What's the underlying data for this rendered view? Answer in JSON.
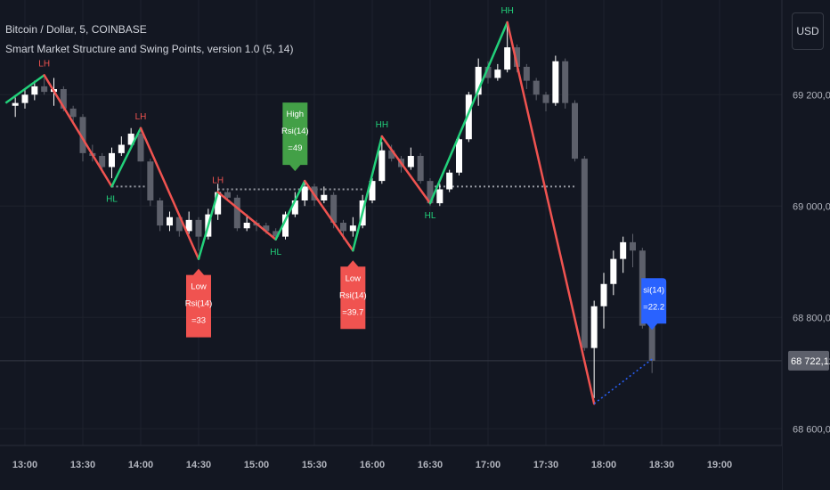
{
  "header": {
    "symbol_line": "Bitcoin / Dollar, 5, COINBASE",
    "indicator_line": "Smart Market Structure and Swing Points, version 1.0 (5, 14)"
  },
  "toolbar": {
    "currency_label": "USD"
  },
  "colors": {
    "background": "#131722",
    "grid": "#1e222d",
    "up_candle": "#ffffff",
    "down_candle": "#5d606b",
    "bull_line": "#22d07a",
    "bear_line": "#f05350",
    "high_box": "#43a047",
    "low_box": "#f05350",
    "current_box": "#2962ff",
    "axis_text": "#b2b5be"
  },
  "chart_data": {
    "type": "candlestick",
    "symbol": "Bitcoin / Dollar",
    "interval": "5",
    "exchange": "COINBASE",
    "x_tick_labels": [
      "13:00",
      "13:30",
      "14:00",
      "14:30",
      "15:00",
      "15:30",
      "16:00",
      "16:30",
      "17:00",
      "17:30",
      "18:00",
      "18:30",
      "19:00"
    ],
    "y_tick_labels": [
      "69 200,00",
      "69 000,00",
      "68 800,00",
      "68 600,00"
    ],
    "y_ticks": [
      69200,
      69000,
      68800,
      68600
    ],
    "ylim": [
      68570,
      69370
    ],
    "last_price": 68722.12,
    "last_price_label": "68 722,12",
    "candles": [
      {
        "time": "12:55",
        "open": 69180,
        "high": 69195,
        "low": 69160,
        "close": 69185
      },
      {
        "time": "13:00",
        "open": 69185,
        "high": 69210,
        "low": 69175,
        "close": 69200
      },
      {
        "time": "13:05",
        "open": 69200,
        "high": 69225,
        "low": 69190,
        "close": 69215
      },
      {
        "time": "13:10",
        "open": 69215,
        "high": 69230,
        "low": 69200,
        "close": 69205
      },
      {
        "time": "13:15",
        "open": 69205,
        "high": 69230,
        "low": 69180,
        "close": 69210
      },
      {
        "time": "13:20",
        "open": 69210,
        "high": 69215,
        "low": 69170,
        "close": 69175
      },
      {
        "time": "13:25",
        "open": 69175,
        "high": 69180,
        "low": 69150,
        "close": 69160
      },
      {
        "time": "13:30",
        "open": 69160,
        "high": 69165,
        "low": 69080,
        "close": 69095
      },
      {
        "time": "13:35",
        "open": 69095,
        "high": 69110,
        "low": 69080,
        "close": 69090
      },
      {
        "time": "13:40",
        "open": 69090,
        "high": 69095,
        "low": 69060,
        "close": 69070
      },
      {
        "time": "13:45",
        "open": 69070,
        "high": 69105,
        "low": 69050,
        "close": 69095
      },
      {
        "time": "13:50",
        "open": 69095,
        "high": 69125,
        "low": 69090,
        "close": 69110
      },
      {
        "time": "13:55",
        "open": 69110,
        "high": 69140,
        "low": 69105,
        "close": 69130
      },
      {
        "time": "14:00",
        "open": 69130,
        "high": 69135,
        "low": 69080,
        "close": 69080
      },
      {
        "time": "14:05",
        "open": 69080,
        "high": 69085,
        "low": 69000,
        "close": 69010
      },
      {
        "time": "14:10",
        "open": 69010,
        "high": 69015,
        "low": 68955,
        "close": 68965
      },
      {
        "time": "14:15",
        "open": 68965,
        "high": 68990,
        "low": 68955,
        "close": 68980
      },
      {
        "time": "14:20",
        "open": 68980,
        "high": 68985,
        "low": 68945,
        "close": 68955
      },
      {
        "time": "14:25",
        "open": 68955,
        "high": 68990,
        "low": 68950,
        "close": 68975
      },
      {
        "time": "14:30",
        "open": 68975,
        "high": 68980,
        "low": 68920,
        "close": 68945
      },
      {
        "time": "14:35",
        "open": 68945,
        "high": 68995,
        "low": 68940,
        "close": 68985
      },
      {
        "time": "14:40",
        "open": 68985,
        "high": 69040,
        "low": 68975,
        "close": 69025
      },
      {
        "time": "14:45",
        "open": 69025,
        "high": 69030,
        "low": 69010,
        "close": 69015
      },
      {
        "time": "14:50",
        "open": 69015,
        "high": 69020,
        "low": 68955,
        "close": 68960
      },
      {
        "time": "14:55",
        "open": 68960,
        "high": 68985,
        "low": 68955,
        "close": 68970
      },
      {
        "time": "15:00",
        "open": 68970,
        "high": 68975,
        "low": 68955,
        "close": 68965
      },
      {
        "time": "15:05",
        "open": 68965,
        "high": 68970,
        "low": 68950,
        "close": 68955
      },
      {
        "time": "15:10",
        "open": 68955,
        "high": 68960,
        "low": 68940,
        "close": 68945
      },
      {
        "time": "15:15",
        "open": 68945,
        "high": 68990,
        "low": 68940,
        "close": 68985
      },
      {
        "time": "15:20",
        "open": 68985,
        "high": 69025,
        "low": 68980,
        "close": 69010
      },
      {
        "time": "15:25",
        "open": 69010,
        "high": 69045,
        "low": 69000,
        "close": 69035
      },
      {
        "time": "15:30",
        "open": 69035,
        "high": 69040,
        "low": 69000,
        "close": 69010
      },
      {
        "time": "15:35",
        "open": 69010,
        "high": 69035,
        "low": 69005,
        "close": 69020
      },
      {
        "time": "15:40",
        "open": 69020,
        "high": 69025,
        "low": 68960,
        "close": 68970
      },
      {
        "time": "15:45",
        "open": 68970,
        "high": 68975,
        "low": 68940,
        "close": 68955
      },
      {
        "time": "15:50",
        "open": 68955,
        "high": 68980,
        "low": 68945,
        "close": 68965
      },
      {
        "time": "15:55",
        "open": 68965,
        "high": 69020,
        "low": 68960,
        "close": 69010
      },
      {
        "time": "16:00",
        "open": 69010,
        "high": 69050,
        "low": 69005,
        "close": 69045
      },
      {
        "time": "16:05",
        "open": 69045,
        "high": 69115,
        "low": 69040,
        "close": 69100
      },
      {
        "time": "16:10",
        "open": 69100,
        "high": 69110,
        "low": 69080,
        "close": 69085
      },
      {
        "time": "16:15",
        "open": 69085,
        "high": 69090,
        "low": 69060,
        "close": 69070
      },
      {
        "time": "16:20",
        "open": 69070,
        "high": 69105,
        "low": 69065,
        "close": 69090
      },
      {
        "time": "16:25",
        "open": 69090,
        "high": 69095,
        "low": 69040,
        "close": 69045
      },
      {
        "time": "16:30",
        "open": 69045,
        "high": 69050,
        "low": 69000,
        "close": 69005
      },
      {
        "time": "16:35",
        "open": 69005,
        "high": 69040,
        "low": 69000,
        "close": 69030
      },
      {
        "time": "16:40",
        "open": 69030,
        "high": 69065,
        "low": 69025,
        "close": 69060
      },
      {
        "time": "16:45",
        "open": 69060,
        "high": 69130,
        "low": 69055,
        "close": 69120
      },
      {
        "time": "16:50",
        "open": 69120,
        "high": 69205,
        "low": 69115,
        "close": 69200
      },
      {
        "time": "16:55",
        "open": 69200,
        "high": 69265,
        "low": 69180,
        "close": 69250
      },
      {
        "time": "17:00",
        "open": 69250,
        "high": 69260,
        "low": 69220,
        "close": 69230
      },
      {
        "time": "17:05",
        "open": 69230,
        "high": 69255,
        "low": 69225,
        "close": 69245
      },
      {
        "time": "17:10",
        "open": 69245,
        "high": 69330,
        "low": 69240,
        "close": 69285
      },
      {
        "time": "17:15",
        "open": 69285,
        "high": 69290,
        "low": 69240,
        "close": 69250
      },
      {
        "time": "17:20",
        "open": 69250,
        "high": 69255,
        "low": 69210,
        "close": 69225
      },
      {
        "time": "17:25",
        "open": 69225,
        "high": 69230,
        "low": 69190,
        "close": 69200
      },
      {
        "time": "17:30",
        "open": 69200,
        "high": 69205,
        "low": 69170,
        "close": 69185
      },
      {
        "time": "17:35",
        "open": 69185,
        "high": 69270,
        "low": 69180,
        "close": 69260
      },
      {
        "time": "17:40",
        "open": 69260,
        "high": 69265,
        "low": 69175,
        "close": 69185
      },
      {
        "time": "17:45",
        "open": 69185,
        "high": 69190,
        "low": 69080,
        "close": 69085
      },
      {
        "time": "17:50",
        "open": 69085,
        "high": 69090,
        "low": 68740,
        "close": 68745
      },
      {
        "time": "17:55",
        "open": 68745,
        "high": 68830,
        "low": 68655,
        "close": 68820
      },
      {
        "time": "18:00",
        "open": 68820,
        "high": 68880,
        "low": 68780,
        "close": 68860
      },
      {
        "time": "18:05",
        "open": 68860,
        "high": 68920,
        "low": 68840,
        "close": 68905
      },
      {
        "time": "18:10",
        "open": 68905,
        "high": 68945,
        "low": 68880,
        "close": 68935
      },
      {
        "time": "18:15",
        "open": 68935,
        "high": 68950,
        "low": 68890,
        "close": 68920
      },
      {
        "time": "18:20",
        "open": 68920,
        "high": 68925,
        "low": 68780,
        "close": 68785
      },
      {
        "time": "18:25",
        "open": 68785,
        "high": 68790,
        "low": 68700,
        "close": 68722
      }
    ],
    "swing_points": [
      {
        "time": "13:10",
        "price": 69235,
        "label": "LH",
        "kind": "high"
      },
      {
        "time": "13:45",
        "price": 69035,
        "label": "HL",
        "kind": "low"
      },
      {
        "time": "14:00",
        "price": 69140,
        "label": "LH",
        "kind": "high"
      },
      {
        "time": "14:30",
        "price": 68905,
        "label": "",
        "kind": "low"
      },
      {
        "time": "14:40",
        "price": 69025,
        "label": "LH",
        "kind": "high"
      },
      {
        "time": "15:10",
        "price": 68940,
        "label": "HL",
        "kind": "low"
      },
      {
        "time": "15:25",
        "price": 69045,
        "label": "",
        "kind": "high"
      },
      {
        "time": "15:50",
        "price": 68920,
        "label": "",
        "kind": "low"
      },
      {
        "time": "16:05",
        "price": 69125,
        "label": "HH",
        "kind": "high"
      },
      {
        "time": "16:30",
        "price": 69005,
        "label": "HL",
        "kind": "low"
      },
      {
        "time": "17:10",
        "price": 69330,
        "label": "HH",
        "kind": "high"
      },
      {
        "time": "17:55",
        "price": 68645,
        "label": "",
        "kind": "low"
      }
    ],
    "swing_lines": [
      {
        "from": 0,
        "to": 1,
        "direction": "bear"
      },
      {
        "from": 1,
        "to": 2,
        "direction": "bull"
      },
      {
        "from": 2,
        "to": 3,
        "direction": "bear"
      },
      {
        "from": 3,
        "to": 4,
        "direction": "bull"
      },
      {
        "from": 4,
        "to": 5,
        "direction": "bear"
      },
      {
        "from": 5,
        "to": 6,
        "direction": "bull"
      },
      {
        "from": 6,
        "to": 7,
        "direction": "bear"
      },
      {
        "from": 7,
        "to": 8,
        "direction": "bull"
      },
      {
        "from": 8,
        "to": 9,
        "direction": "bear"
      },
      {
        "from": 9,
        "to": 10,
        "direction": "bull"
      },
      {
        "from": 10,
        "to": 11,
        "direction": "bear"
      }
    ],
    "lead_in_line": {
      "from_time": "12:50",
      "from_price": 69185,
      "to_point": 0,
      "direction": "bull"
    },
    "projection_line": {
      "from_point": 11,
      "to_time": "18:25",
      "to_price": 68725
    },
    "level_lines": [
      {
        "from_time": "13:45",
        "to_time": "14:05",
        "price": 69035
      },
      {
        "from_time": "14:40",
        "to_time": "15:55",
        "price": 69030
      },
      {
        "from_time": "16:30",
        "to_time": "17:45",
        "price": 69035
      }
    ],
    "rsi_labels": [
      {
        "time": "14:30",
        "price": 68905,
        "position": "below",
        "box": "low",
        "lines": [
          "Low",
          "Rsi(14)",
          "=33"
        ]
      },
      {
        "time": "15:20",
        "price": 69045,
        "position": "above",
        "box": "high",
        "lines": [
          "High",
          "Rsi(14)",
          "=49"
        ]
      },
      {
        "time": "15:50",
        "price": 68920,
        "position": "below",
        "box": "low",
        "lines": [
          "Low",
          "Rsi(14)",
          "=39.7"
        ]
      },
      {
        "time": "18:25",
        "price": 68760,
        "position": "above",
        "box": "current",
        "lines": [
          "si(14)",
          "=22.2"
        ]
      }
    ]
  }
}
